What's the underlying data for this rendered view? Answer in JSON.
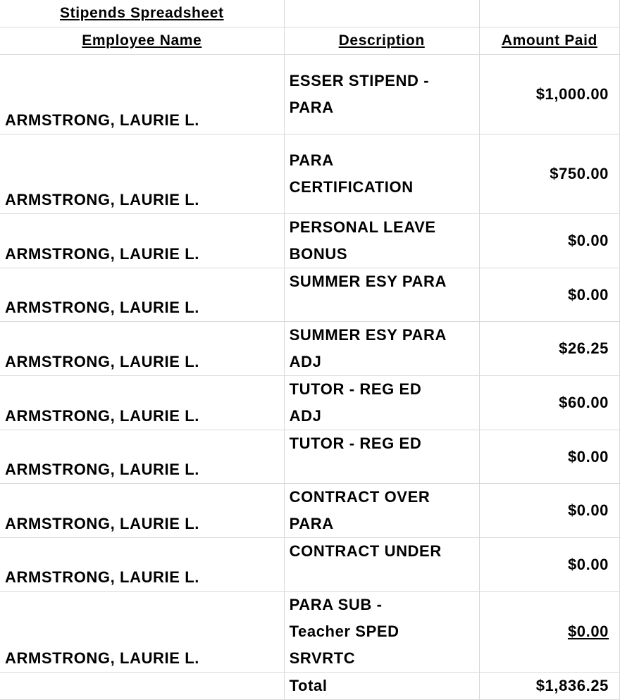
{
  "title": "Stipends Spreadsheet",
  "headers": {
    "name": "Employee Name",
    "description": "Description",
    "amount": "Amount Paid"
  },
  "rows": [
    {
      "name": "ARMSTRONG, LAURIE L.",
      "description": [
        "ESSER STIPEND -",
        "PARA"
      ],
      "amount": "$1,000.00"
    },
    {
      "name": "ARMSTRONG, LAURIE L.",
      "description": [
        "PARA",
        "CERTIFICATION"
      ],
      "amount": "$750.00"
    },
    {
      "name": "ARMSTRONG, LAURIE L.",
      "description": [
        "PERSONAL LEAVE",
        "BONUS"
      ],
      "amount": "$0.00"
    },
    {
      "name": "ARMSTRONG, LAURIE L.",
      "description": [
        "SUMMER ESY PARA"
      ],
      "amount": "$0.00"
    },
    {
      "name": "ARMSTRONG, LAURIE L.",
      "description": [
        "SUMMER ESY PARA",
        "ADJ"
      ],
      "amount": "$26.25"
    },
    {
      "name": "ARMSTRONG, LAURIE L.",
      "description": [
        "TUTOR - REG ED",
        "ADJ"
      ],
      "amount": "$60.00"
    },
    {
      "name": "ARMSTRONG, LAURIE L.",
      "description": [
        "TUTOR - REG ED"
      ],
      "amount": "$0.00"
    },
    {
      "name": "ARMSTRONG, LAURIE L.",
      "description": [
        "CONTRACT OVER",
        "PARA"
      ],
      "amount": "$0.00"
    },
    {
      "name": "ARMSTRONG, LAURIE L.",
      "description": [
        "CONTRACT UNDER"
      ],
      "amount": "$0.00"
    },
    {
      "name": "ARMSTRONG, LAURIE L.",
      "description": [
        "PARA SUB -",
        "Teacher SPED",
        "SRVRTC"
      ],
      "amount": "$0.00",
      "underlined": true
    }
  ],
  "total": {
    "label": "Total",
    "amount": "$1,836.25"
  }
}
